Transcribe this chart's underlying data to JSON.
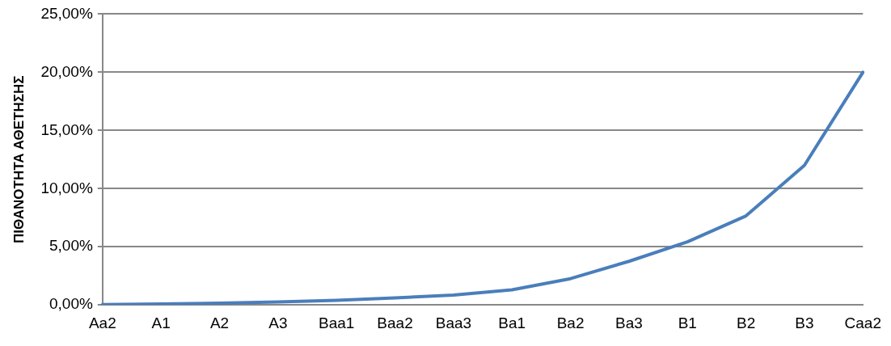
{
  "chart_data": {
    "type": "line",
    "ylabel": "ΠΙΘΑΝΟΤΗΤΑ ΑΘΕΤΗΣΗΣ",
    "categories": [
      "Aa2",
      "A1",
      "A2",
      "A3",
      "Baa1",
      "Baa2",
      "Baa3",
      "Ba1",
      "Ba2",
      "Ba3",
      "B1",
      "B2",
      "B3",
      "Caa2"
    ],
    "series": [
      {
        "color": "#4a7ebb",
        "values": [
          0.03,
          0.08,
          0.15,
          0.25,
          0.4,
          0.6,
          0.85,
          1.3,
          2.26,
          3.75,
          5.43,
          7.65,
          12,
          20
        ]
      }
    ],
    "ylim": [
      0,
      25
    ],
    "yticks": [
      {
        "value": 0,
        "label": "0,00%"
      },
      {
        "value": 5,
        "label": "5,00%"
      },
      {
        "value": 10,
        "label": "10,00%"
      },
      {
        "value": 15,
        "label": "15,00%"
      },
      {
        "value": 20,
        "label": "20,00%"
      },
      {
        "value": 25,
        "label": "25,00%"
      }
    ],
    "grid": "y",
    "legend": false,
    "marker": "none",
    "line_style": "solid"
  }
}
